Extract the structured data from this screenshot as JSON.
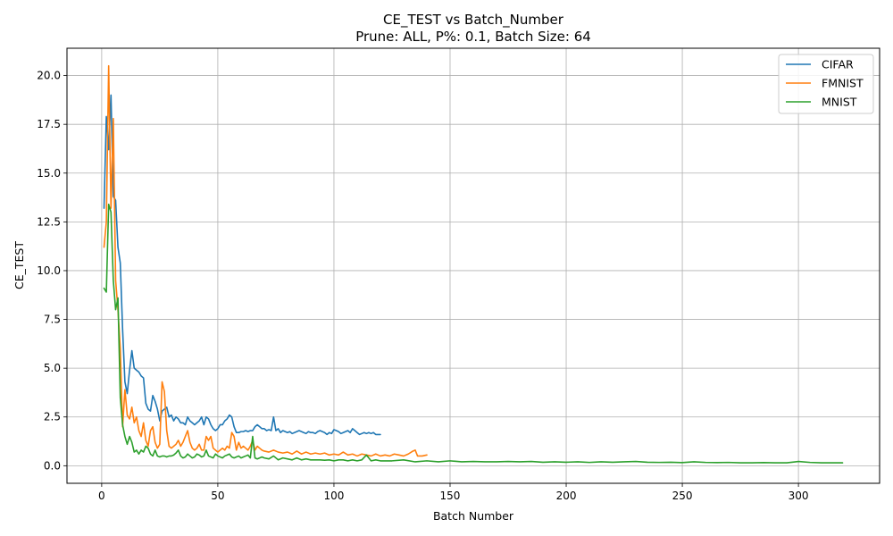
{
  "chart_data": {
    "type": "line",
    "title": "CE_TEST vs Batch_Number",
    "subtitle": "Prune: ALL, P%: 0.1, Batch Size: 64",
    "xlabel": "Batch Number",
    "ylabel": "CE_TEST",
    "xlim": [
      -14.95,
      334.95
    ],
    "ylim": [
      -0.9,
      21.4
    ],
    "xticks": [
      0,
      50,
      100,
      150,
      200,
      250,
      300
    ],
    "yticks": [
      0.0,
      2.5,
      5.0,
      7.5,
      10.0,
      12.5,
      15.0,
      17.5,
      20.0
    ],
    "xtick_labels": [
      "0",
      "50",
      "100",
      "150",
      "200",
      "250",
      "300"
    ],
    "ytick_labels": [
      "0.0",
      "2.5",
      "5.0",
      "7.5",
      "10.0",
      "12.5",
      "15.0",
      "17.5",
      "20.0"
    ],
    "grid": true,
    "legend_position": "top-right",
    "colors": {
      "CIFAR": "#1f77b4",
      "FMNIST": "#ff7f0e",
      "MNIST": "#2ca02c"
    },
    "series": [
      {
        "name": "CIFAR",
        "x": [
          1,
          2,
          3,
          4,
          5,
          6,
          7,
          8,
          9,
          10,
          11,
          12,
          13,
          14,
          15,
          16,
          17,
          18,
          19,
          20,
          21,
          22,
          23,
          24,
          25,
          26,
          27,
          28,
          29,
          30,
          31,
          32,
          33,
          34,
          35,
          36,
          37,
          38,
          39,
          40,
          41,
          42,
          43,
          44,
          45,
          46,
          47,
          48,
          49,
          50,
          51,
          52,
          53,
          54,
          55,
          56,
          57,
          58,
          59,
          60,
          61,
          62,
          63,
          64,
          65,
          66,
          67,
          68,
          69,
          70,
          71,
          72,
          73,
          74,
          75,
          76,
          77,
          78,
          79,
          80,
          81,
          82,
          83,
          84,
          85,
          86,
          87,
          88,
          89,
          90,
          91,
          92,
          93,
          94,
          95,
          96,
          97,
          98,
          99,
          100,
          101,
          102,
          103,
          104,
          105,
          106,
          107,
          108,
          109,
          110,
          111,
          112,
          113,
          114,
          115,
          116,
          117,
          118,
          119,
          120
        ],
        "y": [
          13.2,
          17.9,
          16.2,
          19.0,
          13.8,
          13.6,
          11.2,
          10.4,
          7.0,
          4.3,
          3.7,
          4.9,
          5.9,
          5.0,
          4.9,
          4.8,
          4.6,
          4.5,
          3.2,
          2.9,
          2.8,
          3.6,
          3.3,
          2.9,
          2.3,
          2.8,
          2.9,
          3.0,
          2.5,
          2.6,
          2.3,
          2.5,
          2.4,
          2.2,
          2.2,
          2.1,
          2.5,
          2.3,
          2.2,
          2.1,
          2.2,
          2.3,
          2.5,
          2.1,
          2.5,
          2.4,
          2.1,
          1.9,
          1.8,
          1.9,
          2.1,
          2.1,
          2.3,
          2.4,
          2.6,
          2.5,
          2.0,
          1.7,
          1.7,
          1.75,
          1.75,
          1.8,
          1.75,
          1.8,
          1.8,
          2.0,
          2.1,
          2.0,
          1.9,
          1.9,
          1.8,
          1.85,
          1.8,
          2.5,
          1.8,
          1.9,
          1.7,
          1.8,
          1.75,
          1.7,
          1.75,
          1.65,
          1.7,
          1.75,
          1.8,
          1.75,
          1.7,
          1.65,
          1.75,
          1.7,
          1.7,
          1.65,
          1.75,
          1.8,
          1.75,
          1.7,
          1.6,
          1.7,
          1.65,
          1.85,
          1.8,
          1.75,
          1.65,
          1.7,
          1.75,
          1.8,
          1.7,
          1.9,
          1.8,
          1.7,
          1.6,
          1.65,
          1.7,
          1.65,
          1.7,
          1.65,
          1.7,
          1.6,
          1.6,
          1.6
        ]
      },
      {
        "name": "FMNIST",
        "x": [
          1,
          2,
          3,
          4,
          5,
          6,
          7,
          8,
          9,
          10,
          11,
          12,
          13,
          14,
          15,
          16,
          17,
          18,
          19,
          20,
          21,
          22,
          23,
          24,
          25,
          26,
          27,
          28,
          29,
          30,
          31,
          32,
          33,
          34,
          35,
          36,
          37,
          38,
          39,
          40,
          41,
          42,
          43,
          44,
          45,
          46,
          47,
          48,
          49,
          50,
          51,
          52,
          53,
          54,
          55,
          56,
          57,
          58,
          59,
          60,
          61,
          62,
          63,
          64,
          65,
          66,
          67,
          68,
          69,
          70,
          72,
          74,
          76,
          78,
          80,
          82,
          84,
          86,
          88,
          90,
          92,
          94,
          96,
          98,
          100,
          102,
          104,
          106,
          108,
          110,
          112,
          114,
          116,
          118,
          120,
          122,
          124,
          126,
          128,
          130,
          132,
          134,
          135,
          136,
          138,
          140
        ],
        "y": [
          11.2,
          12.5,
          20.5,
          13.2,
          17.8,
          9.5,
          8.0,
          6.0,
          2.0,
          3.9,
          2.6,
          2.4,
          3.0,
          2.2,
          2.5,
          1.8,
          1.5,
          2.2,
          1.3,
          1.0,
          1.8,
          2.0,
          1.2,
          0.9,
          1.1,
          4.3,
          3.8,
          1.8,
          1.0,
          0.9,
          1.0,
          1.1,
          1.3,
          1.0,
          1.2,
          1.5,
          1.8,
          1.2,
          0.9,
          0.8,
          0.9,
          1.1,
          0.8,
          0.8,
          1.5,
          1.3,
          1.5,
          0.9,
          0.8,
          0.7,
          0.8,
          0.9,
          0.8,
          1.0,
          0.9,
          1.7,
          1.5,
          0.8,
          1.2,
          0.9,
          1.0,
          0.9,
          0.8,
          1.0,
          1.3,
          0.8,
          1.0,
          0.9,
          0.8,
          0.75,
          0.7,
          0.8,
          0.7,
          0.65,
          0.7,
          0.6,
          0.75,
          0.6,
          0.7,
          0.6,
          0.65,
          0.6,
          0.65,
          0.55,
          0.6,
          0.55,
          0.7,
          0.55,
          0.6,
          0.5,
          0.6,
          0.55,
          0.5,
          0.6,
          0.5,
          0.55,
          0.5,
          0.6,
          0.55,
          0.5,
          0.6,
          0.75,
          0.8,
          0.5,
          0.5,
          0.55
        ]
      },
      {
        "name": "MNIST",
        "x": [
          1,
          2,
          3,
          4,
          5,
          6,
          7,
          8,
          9,
          10,
          11,
          12,
          13,
          14,
          15,
          16,
          17,
          18,
          19,
          20,
          21,
          22,
          23,
          24,
          25,
          26,
          27,
          28,
          29,
          30,
          31,
          32,
          33,
          34,
          35,
          36,
          37,
          38,
          39,
          40,
          41,
          42,
          43,
          44,
          45,
          46,
          47,
          48,
          49,
          50,
          51,
          52,
          53,
          54,
          55,
          56,
          57,
          58,
          59,
          60,
          61,
          62,
          63,
          64,
          65,
          66,
          67,
          68,
          69,
          70,
          72,
          74,
          76,
          78,
          80,
          82,
          84,
          86,
          88,
          90,
          92,
          94,
          96,
          98,
          100,
          102,
          104,
          106,
          108,
          110,
          112,
          114,
          116,
          118,
          120,
          125,
          130,
          135,
          140,
          145,
          150,
          155,
          160,
          165,
          170,
          175,
          180,
          185,
          190,
          195,
          200,
          205,
          210,
          215,
          220,
          225,
          230,
          235,
          240,
          245,
          250,
          255,
          260,
          265,
          270,
          275,
          280,
          285,
          290,
          295,
          300,
          305,
          310,
          315,
          319
        ],
        "y": [
          9.1,
          8.9,
          13.4,
          13.0,
          9.5,
          8.0,
          8.6,
          3.5,
          2.1,
          1.5,
          1.1,
          1.5,
          1.2,
          0.7,
          0.8,
          0.6,
          0.8,
          0.7,
          1.0,
          0.9,
          0.6,
          0.5,
          0.8,
          0.5,
          0.45,
          0.5,
          0.5,
          0.45,
          0.5,
          0.5,
          0.55,
          0.65,
          0.8,
          0.5,
          0.4,
          0.45,
          0.6,
          0.5,
          0.4,
          0.45,
          0.6,
          0.55,
          0.45,
          0.5,
          0.8,
          0.5,
          0.45,
          0.4,
          0.6,
          0.5,
          0.45,
          0.4,
          0.5,
          0.55,
          0.6,
          0.45,
          0.4,
          0.45,
          0.5,
          0.4,
          0.45,
          0.5,
          0.55,
          0.4,
          1.5,
          0.4,
          0.35,
          0.4,
          0.45,
          0.4,
          0.35,
          0.5,
          0.3,
          0.4,
          0.35,
          0.3,
          0.4,
          0.3,
          0.35,
          0.3,
          0.3,
          0.3,
          0.28,
          0.3,
          0.25,
          0.3,
          0.3,
          0.25,
          0.3,
          0.25,
          0.3,
          0.55,
          0.25,
          0.3,
          0.25,
          0.25,
          0.3,
          0.2,
          0.25,
          0.2,
          0.25,
          0.2,
          0.22,
          0.2,
          0.2,
          0.22,
          0.2,
          0.22,
          0.18,
          0.2,
          0.18,
          0.2,
          0.17,
          0.2,
          0.18,
          0.2,
          0.22,
          0.18,
          0.17,
          0.18,
          0.16,
          0.2,
          0.17,
          0.16,
          0.17,
          0.15,
          0.15,
          0.16,
          0.15,
          0.15,
          0.22,
          0.17,
          0.15,
          0.15,
          0.15
        ]
      }
    ]
  }
}
